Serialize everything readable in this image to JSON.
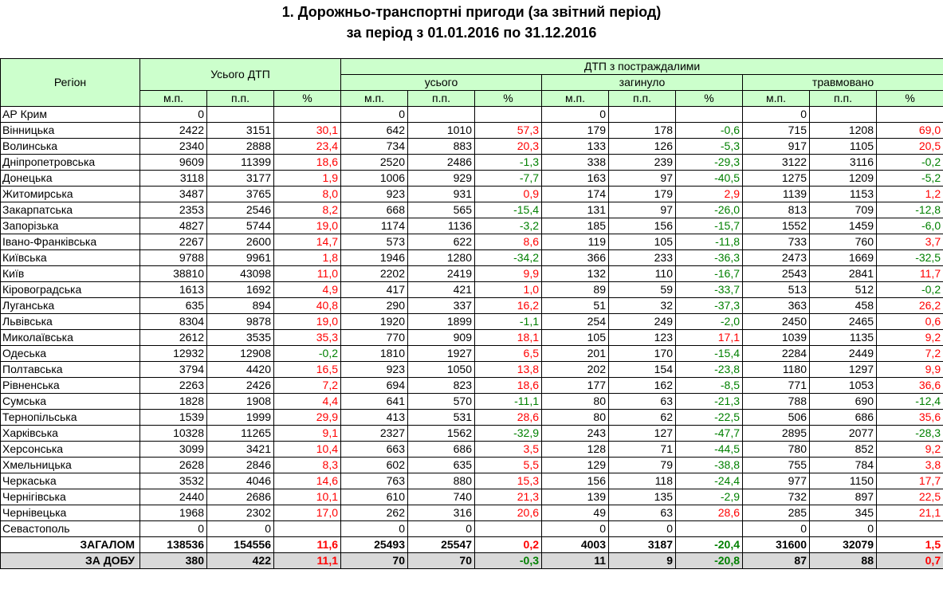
{
  "title": {
    "line1": "1. Дорожньо-транспортні пригоди (за звітний період)",
    "line2": "за період з 01.01.2016 по 31.12.2016"
  },
  "header": {
    "region": "Регіон",
    "total_dtp": "Усього ДТП",
    "dtp_victims": "ДТП з постраждалими",
    "all": "усього",
    "killed": "загинуло",
    "injured": "травмовано",
    "mp": "м.п.",
    "pp": "п.п.",
    "pct": "%"
  },
  "colors": {
    "header_bg": "#ccffcc",
    "positive": "#ff0000",
    "negative": "#008000",
    "day_bg": "#d9d9d9"
  },
  "rows": [
    [
      "АР Крим",
      "0",
      "",
      "",
      "0",
      "",
      "",
      "0",
      "",
      "",
      "0",
      "",
      ""
    ],
    [
      "Вінницька",
      "2422",
      "3151",
      "30,1",
      "642",
      "1010",
      "57,3",
      "179",
      "178",
      "-0,6",
      "715",
      "1208",
      "69,0"
    ],
    [
      "Волинська",
      "2340",
      "2888",
      "23,4",
      "734",
      "883",
      "20,3",
      "133",
      "126",
      "-5,3",
      "917",
      "1105",
      "20,5"
    ],
    [
      "Дніпропетровська",
      "9609",
      "11399",
      "18,6",
      "2520",
      "2486",
      "-1,3",
      "338",
      "239",
      "-29,3",
      "3122",
      "3116",
      "-0,2"
    ],
    [
      "Донецька",
      "3118",
      "3177",
      "1,9",
      "1006",
      "929",
      "-7,7",
      "163",
      "97",
      "-40,5",
      "1275",
      "1209",
      "-5,2"
    ],
    [
      "Житомирська",
      "3487",
      "3765",
      "8,0",
      "923",
      "931",
      "0,9",
      "174",
      "179",
      "2,9",
      "1139",
      "1153",
      "1,2"
    ],
    [
      "Закарпатська",
      "2353",
      "2546",
      "8,2",
      "668",
      "565",
      "-15,4",
      "131",
      "97",
      "-26,0",
      "813",
      "709",
      "-12,8"
    ],
    [
      "Запорізька",
      "4827",
      "5744",
      "19,0",
      "1174",
      "1136",
      "-3,2",
      "185",
      "156",
      "-15,7",
      "1552",
      "1459",
      "-6,0"
    ],
    [
      "Івано-Франківська",
      "2267",
      "2600",
      "14,7",
      "573",
      "622",
      "8,6",
      "119",
      "105",
      "-11,8",
      "733",
      "760",
      "3,7"
    ],
    [
      "Київська",
      "9788",
      "9961",
      "1,8",
      "1946",
      "1280",
      "-34,2",
      "366",
      "233",
      "-36,3",
      "2473",
      "1669",
      "-32,5"
    ],
    [
      "Київ",
      "38810",
      "43098",
      "11,0",
      "2202",
      "2419",
      "9,9",
      "132",
      "110",
      "-16,7",
      "2543",
      "2841",
      "11,7"
    ],
    [
      "Кіровоградська",
      "1613",
      "1692",
      "4,9",
      "417",
      "421",
      "1,0",
      "89",
      "59",
      "-33,7",
      "513",
      "512",
      "-0,2"
    ],
    [
      "Луганська",
      "635",
      "894",
      "40,8",
      "290",
      "337",
      "16,2",
      "51",
      "32",
      "-37,3",
      "363",
      "458",
      "26,2"
    ],
    [
      "Львівська",
      "8304",
      "9878",
      "19,0",
      "1920",
      "1899",
      "-1,1",
      "254",
      "249",
      "-2,0",
      "2450",
      "2465",
      "0,6"
    ],
    [
      "Миколаївська",
      "2612",
      "3535",
      "35,3",
      "770",
      "909",
      "18,1",
      "105",
      "123",
      "17,1",
      "1039",
      "1135",
      "9,2"
    ],
    [
      "Одеська",
      "12932",
      "12908",
      "-0,2",
      "1810",
      "1927",
      "6,5",
      "201",
      "170",
      "-15,4",
      "2284",
      "2449",
      "7,2"
    ],
    [
      "Полтавська",
      "3794",
      "4420",
      "16,5",
      "923",
      "1050",
      "13,8",
      "202",
      "154",
      "-23,8",
      "1180",
      "1297",
      "9,9"
    ],
    [
      "Рівненська",
      "2263",
      "2426",
      "7,2",
      "694",
      "823",
      "18,6",
      "177",
      "162",
      "-8,5",
      "771",
      "1053",
      "36,6"
    ],
    [
      "Сумська",
      "1828",
      "1908",
      "4,4",
      "641",
      "570",
      "-11,1",
      "80",
      "63",
      "-21,3",
      "788",
      "690",
      "-12,4"
    ],
    [
      "Тернопільська",
      "1539",
      "1999",
      "29,9",
      "413",
      "531",
      "28,6",
      "80",
      "62",
      "-22,5",
      "506",
      "686",
      "35,6"
    ],
    [
      "Харківська",
      "10328",
      "11265",
      "9,1",
      "2327",
      "1562",
      "-32,9",
      "243",
      "127",
      "-47,7",
      "2895",
      "2077",
      "-28,3"
    ],
    [
      "Херсонська",
      "3099",
      "3421",
      "10,4",
      "663",
      "686",
      "3,5",
      "128",
      "71",
      "-44,5",
      "780",
      "852",
      "9,2"
    ],
    [
      "Хмельницька",
      "2628",
      "2846",
      "8,3",
      "602",
      "635",
      "5,5",
      "129",
      "79",
      "-38,8",
      "755",
      "784",
      "3,8"
    ],
    [
      "Черкаська",
      "3532",
      "4046",
      "14,6",
      "763",
      "880",
      "15,3",
      "156",
      "118",
      "-24,4",
      "977",
      "1150",
      "17,7"
    ],
    [
      "Чернігівська",
      "2440",
      "2686",
      "10,1",
      "610",
      "740",
      "21,3",
      "139",
      "135",
      "-2,9",
      "732",
      "897",
      "22,5"
    ],
    [
      "Чернівецька",
      "1968",
      "2302",
      "17,0",
      "262",
      "316",
      "20,6",
      "49",
      "63",
      "28,6",
      "285",
      "345",
      "21,1"
    ],
    [
      "Севастополь",
      "0",
      "0",
      "",
      "0",
      "0",
      "",
      "0",
      "0",
      "",
      "0",
      "0",
      ""
    ]
  ],
  "total": [
    "ЗАГАЛОМ",
    "138536",
    "154556",
    "11,6",
    "25493",
    "25547",
    "0,2",
    "4003",
    "3187",
    "-20,4",
    "31600",
    "32079",
    "1,5"
  ],
  "per_day": [
    "ЗА ДОБУ",
    "380",
    "422",
    "11,1",
    "70",
    "70",
    "-0,3",
    "11",
    "9",
    "-20,8",
    "87",
    "88",
    "0,7"
  ]
}
